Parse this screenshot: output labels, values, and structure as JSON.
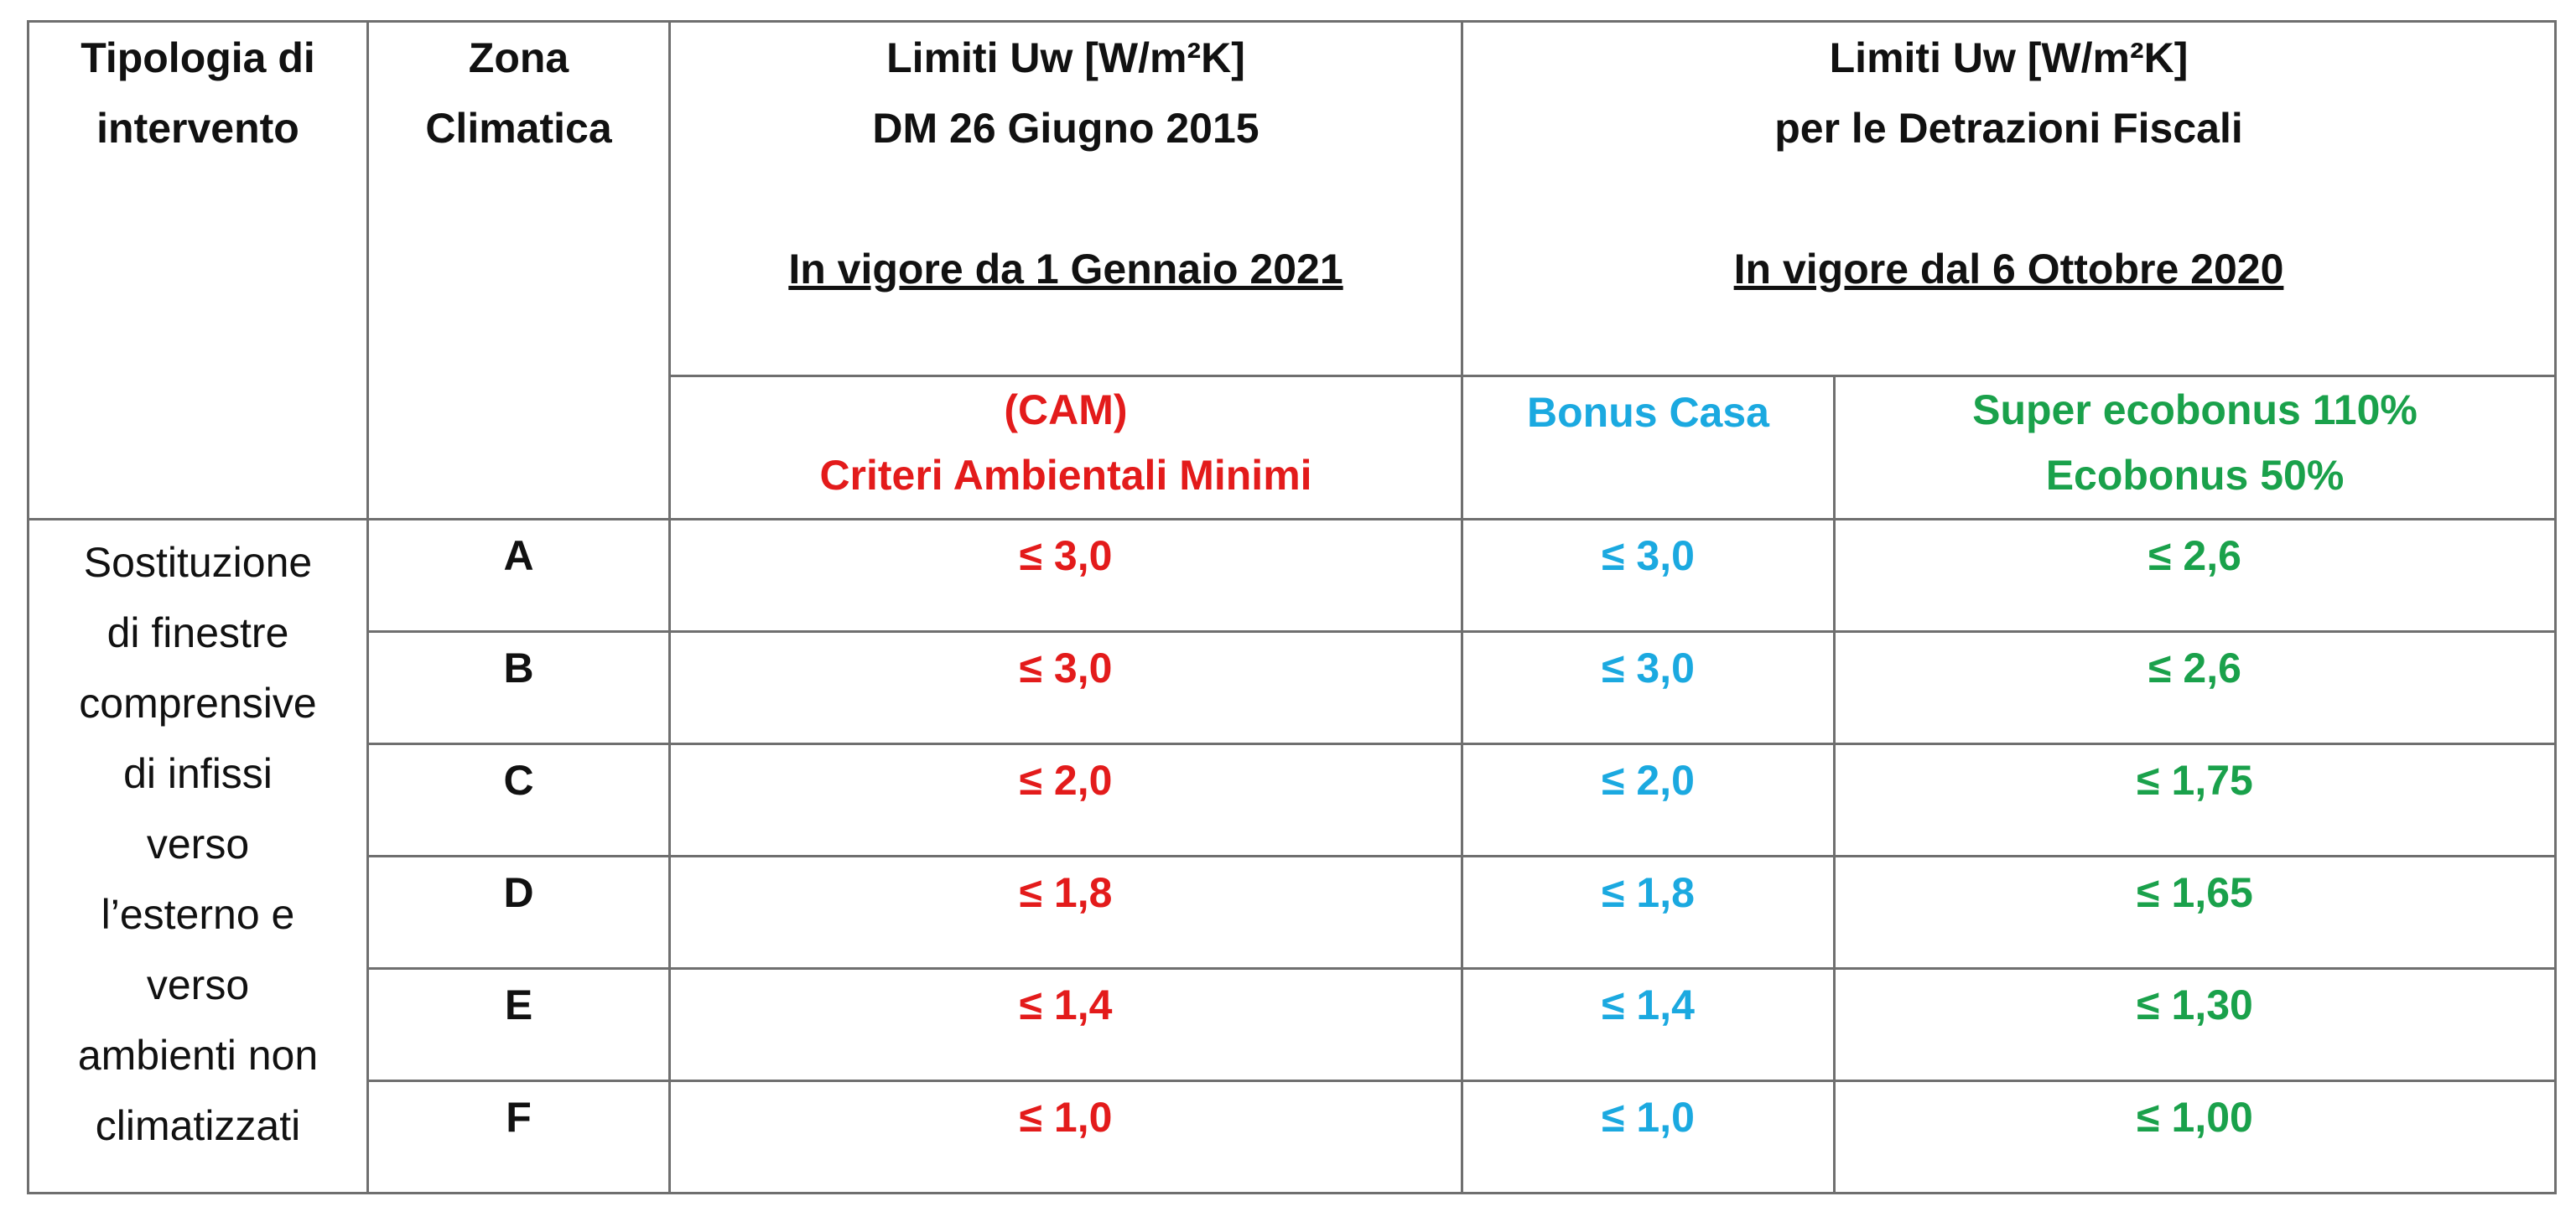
{
  "headers": {
    "tipologia": [
      "Tipologia di",
      "intervento"
    ],
    "zona": [
      "Zona",
      "Climatica"
    ],
    "dm": {
      "lines": [
        "Limiti Uw [W/m²K]",
        "DM 26 Giugno 2015"
      ],
      "date": "In vigore da 1 Gennaio 2021"
    },
    "detrazioni": {
      "lines": [
        "Limiti Uw [W/m²K]",
        "per le Detrazioni Fiscali"
      ],
      "date": "In vigore dal 6 Ottobre 2020"
    },
    "cam": [
      "(CAM)",
      "Criteri Ambientali Minimi"
    ],
    "bonus_casa": "Bonus Casa",
    "ecobonus": [
      "Super ecobonus 110%",
      "Ecobonus 50%"
    ]
  },
  "intervento": [
    "Sostituzione",
    "di finestre",
    "comprensive",
    "di infissi",
    "verso",
    "l’esterno e",
    "verso",
    "ambienti non",
    "climatizzati"
  ],
  "rows": [
    {
      "zona": "A",
      "cam": "≤ 3,0",
      "bonus": "≤ 3,0",
      "eco": "≤ 2,6"
    },
    {
      "zona": "B",
      "cam": "≤ 3,0",
      "bonus": "≤ 3,0",
      "eco": "≤ 2,6"
    },
    {
      "zona": "C",
      "cam": "≤ 2,0",
      "bonus": "≤ 2,0",
      "eco": "≤ 1,75"
    },
    {
      "zona": "D",
      "cam": "≤ 1,8",
      "bonus": "≤ 1,8",
      "eco": "≤ 1,65"
    },
    {
      "zona": "E",
      "cam": "≤ 1,4",
      "bonus": "≤ 1,4",
      "eco": "≤ 1,30"
    },
    {
      "zona": "F",
      "cam": "≤ 1,0",
      "bonus": "≤ 1,0",
      "eco": "≤ 1,00"
    }
  ],
  "colors": {
    "cam": "#e31b1b",
    "bonus_casa": "#1ba9e0",
    "ecobonus": "#1aa14b"
  }
}
